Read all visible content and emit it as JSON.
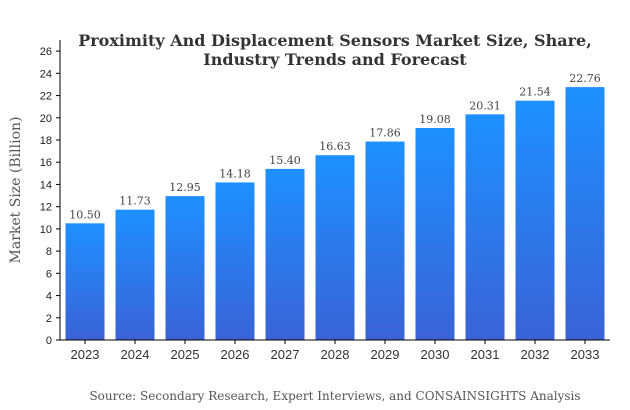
{
  "chart_data": {
    "type": "bar",
    "title_line1": "Proximity And Displacement Sensors Market Size, Share,",
    "title_line2": "Industry Trends and Forecast",
    "xlabel": "",
    "ylabel": "Market Size (Billion)",
    "categories": [
      "2023",
      "2024",
      "2025",
      "2026",
      "2027",
      "2028",
      "2029",
      "2030",
      "2031",
      "2032",
      "2033"
    ],
    "values": [
      10.5,
      11.73,
      12.95,
      14.18,
      15.4,
      16.63,
      17.86,
      19.08,
      20.31,
      21.54,
      22.76
    ],
    "value_labels": [
      "10.50",
      "11.73",
      "12.95",
      "14.18",
      "15.40",
      "16.63",
      "17.86",
      "19.08",
      "20.31",
      "21.54",
      "22.76"
    ],
    "ylim": [
      0,
      27
    ],
    "yticks": [
      0,
      2,
      4,
      6,
      8,
      10,
      12,
      14,
      16,
      18,
      20,
      22,
      24,
      26
    ],
    "grid": false,
    "legend": "none",
    "bar_color_top": "#1e90ff",
    "bar_color_bottom": "#3a63d6",
    "source": "Source: Secondary Research, Expert Interviews, and CONSAINSIGHTS Analysis"
  }
}
